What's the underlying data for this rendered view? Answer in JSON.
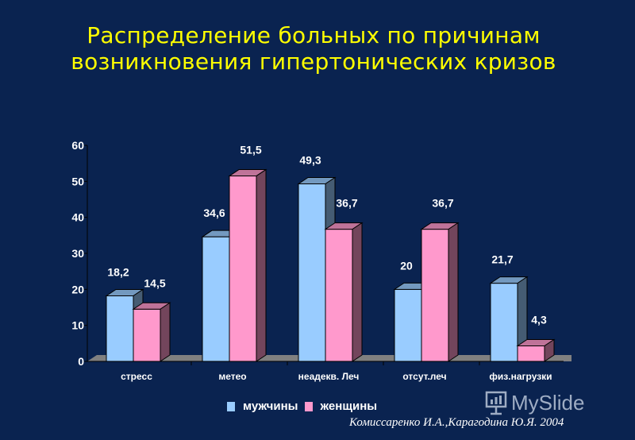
{
  "title_lines": [
    "Распределение больных по причинам",
    "возникновения гипертонических кризов"
  ],
  "legend": [
    {
      "label": "мужчины",
      "color": "#99ccff"
    },
    {
      "label": "женщины",
      "color": "#ff99cc"
    }
  ],
  "citation": "Комиссаренко И.А.,Карагодина Ю.Я. 2004",
  "watermark": "MySlide",
  "colors": {
    "background": "#0a2350",
    "title": "#ffff00",
    "floor": "#808080"
  },
  "chart_data": {
    "type": "bar",
    "title": "Распределение больных по причинам возникновения гипертонических кризов",
    "categories": [
      "стресс",
      "метео",
      "неадекв. Леч",
      "отсут.леч",
      "физ.нагрузки"
    ],
    "series": [
      {
        "name": "мужчины",
        "values": [
          18.2,
          34.6,
          49.3,
          20,
          21.7
        ],
        "labels": [
          "18,2",
          "34,6",
          "49,3",
          "20",
          "21,7"
        ]
      },
      {
        "name": "женщины",
        "values": [
          14.5,
          51.5,
          36.7,
          36.7,
          4.3
        ],
        "labels": [
          "14,5",
          "51,5",
          "36,7",
          "36,7",
          "4,3"
        ]
      }
    ],
    "ylim": [
      0,
      60
    ],
    "yticks": [
      "0",
      "10",
      "20",
      "30",
      "40",
      "50",
      "60"
    ],
    "grid": false,
    "style": "3d-columns",
    "legend_position": "bottom"
  }
}
